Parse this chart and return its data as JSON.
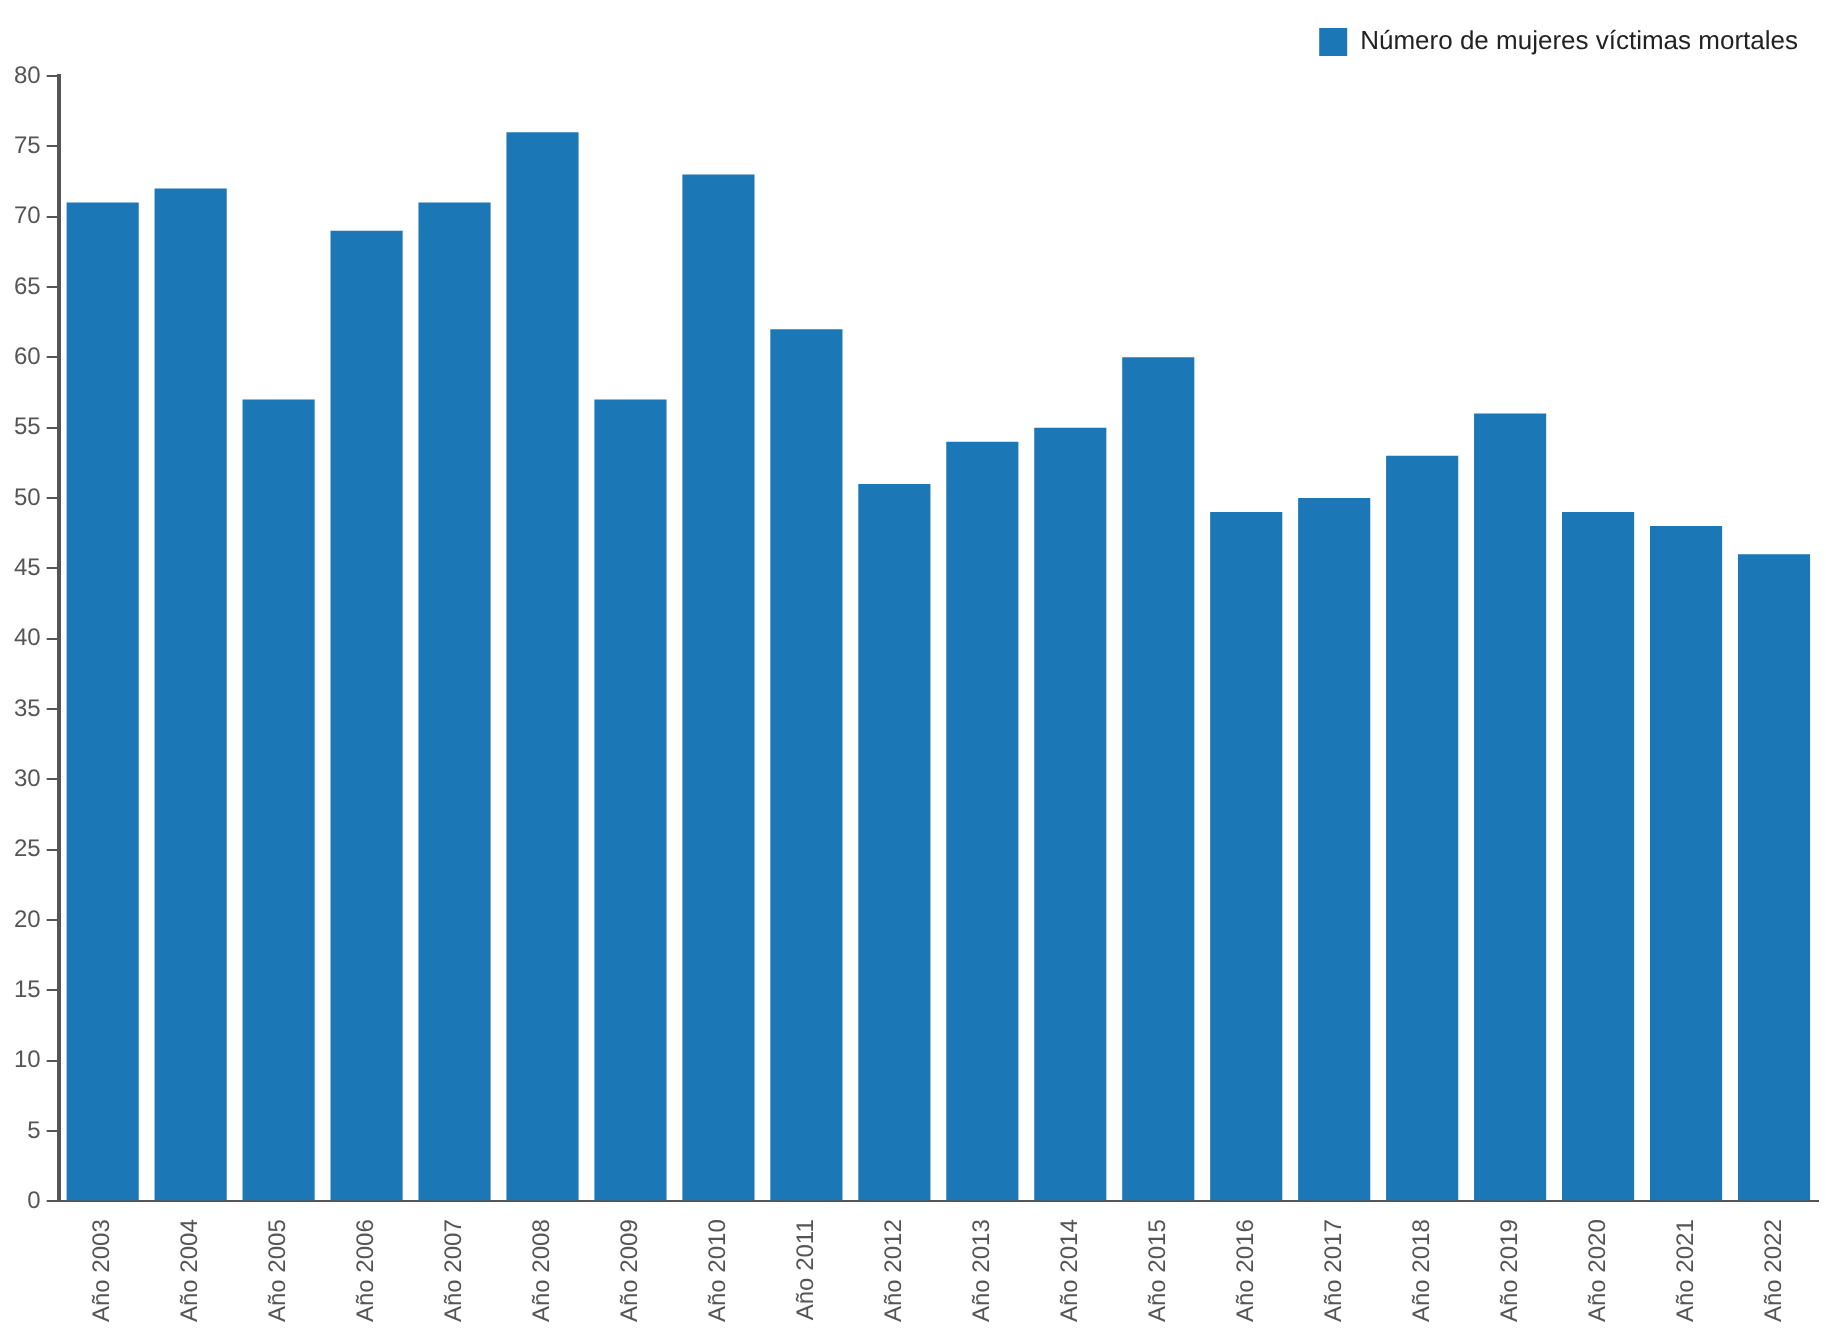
{
  "chart_data": {
    "type": "bar",
    "categories": [
      "Año 2003",
      "Año 2004",
      "Año 2005",
      "Año 2006",
      "Año 2007",
      "Año 2008",
      "Año 2009",
      "Año 2010",
      "Año 2011",
      "Año 2012",
      "Año 2013",
      "Año 2014",
      "Año 2015",
      "Año 2016",
      "Año 2017",
      "Año 2018",
      "Año 2019",
      "Año 2020",
      "Año 2021",
      "Año 2022"
    ],
    "series": [
      {
        "name": "Número de mujeres víctimas mortales",
        "color": "#1b77b5",
        "values": [
          71,
          72,
          57,
          69,
          71,
          76,
          57,
          73,
          62,
          51,
          54,
          55,
          60,
          49,
          50,
          53,
          56,
          49,
          48,
          46
        ]
      }
    ],
    "ylim": [
      0,
      80
    ],
    "yticks": [
      0,
      5,
      10,
      15,
      20,
      25,
      30,
      35,
      40,
      45,
      50,
      55,
      60,
      65,
      70,
      75,
      80
    ],
    "grid": false,
    "legend": "top right"
  }
}
